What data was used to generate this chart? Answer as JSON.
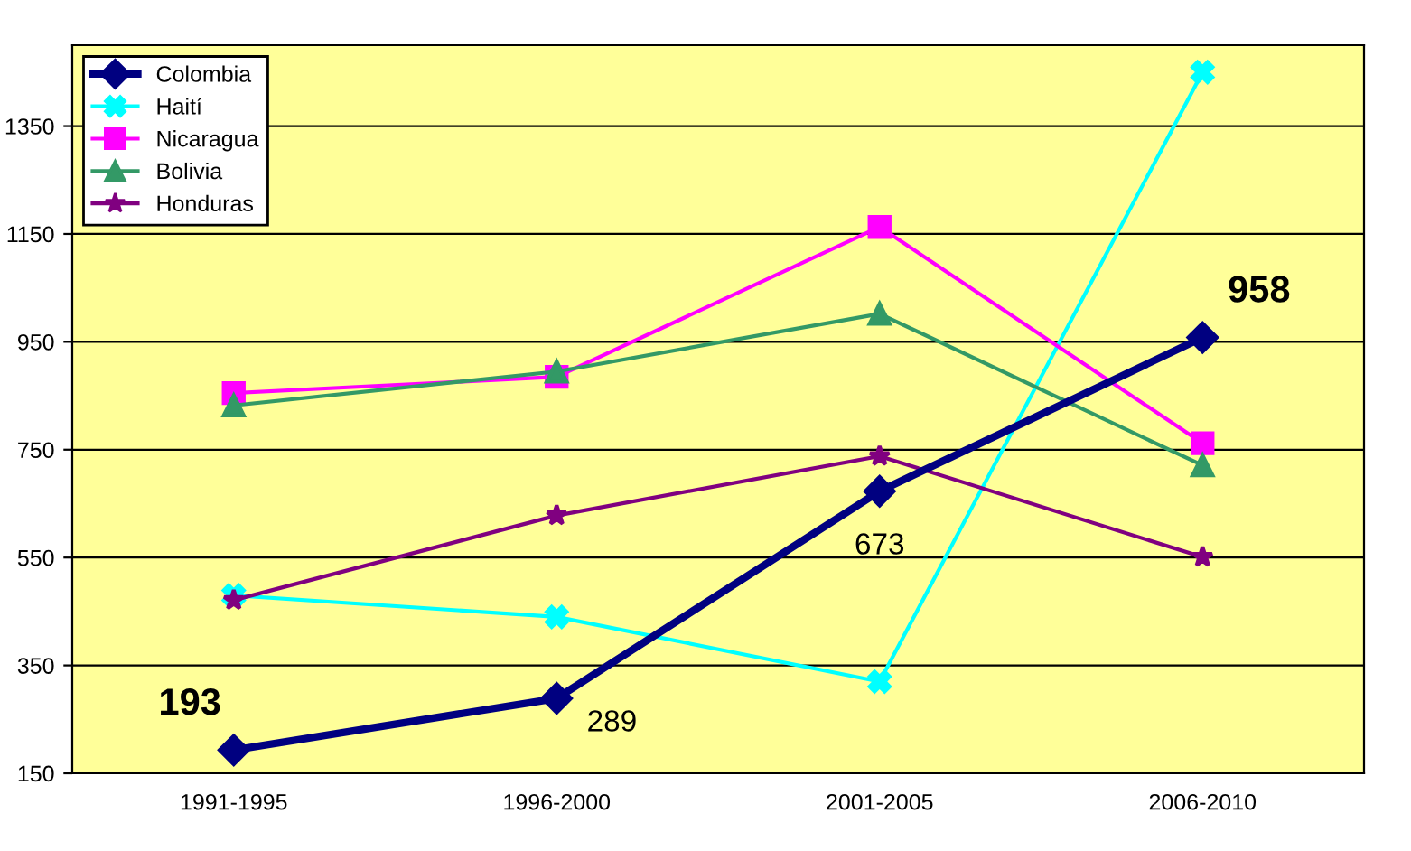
{
  "chart_data": {
    "type": "line",
    "categories": [
      "1991-1995",
      "1996-2000",
      "2001-2005",
      "2006-2010"
    ],
    "ylim": [
      150,
      1500
    ],
    "yticks": [
      150,
      350,
      550,
      750,
      950,
      1150,
      1350
    ],
    "grid": "y",
    "legend": "top left",
    "series": [
      {
        "name": "Colombia",
        "color": "#000080",
        "marker": "diamond",
        "values": [
          193,
          289,
          673,
          958
        ],
        "value_labels": [
          "193",
          "289",
          "673",
          "958"
        ]
      },
      {
        "name": "Haití",
        "color": "#00ffff",
        "marker": "cross",
        "values": [
          480,
          440,
          320,
          1450
        ]
      },
      {
        "name": "Nicaragua",
        "color": "#ff00ff",
        "marker": "square",
        "values": [
          855,
          885,
          1163,
          762
        ]
      },
      {
        "name": "Bolivia",
        "color": "#339966",
        "marker": "triangle",
        "values": [
          832,
          895,
          1002,
          721
        ]
      },
      {
        "name": "Honduras",
        "color": "#800080",
        "marker": "star",
        "values": [
          471,
          628,
          738,
          551
        ]
      }
    ]
  }
}
